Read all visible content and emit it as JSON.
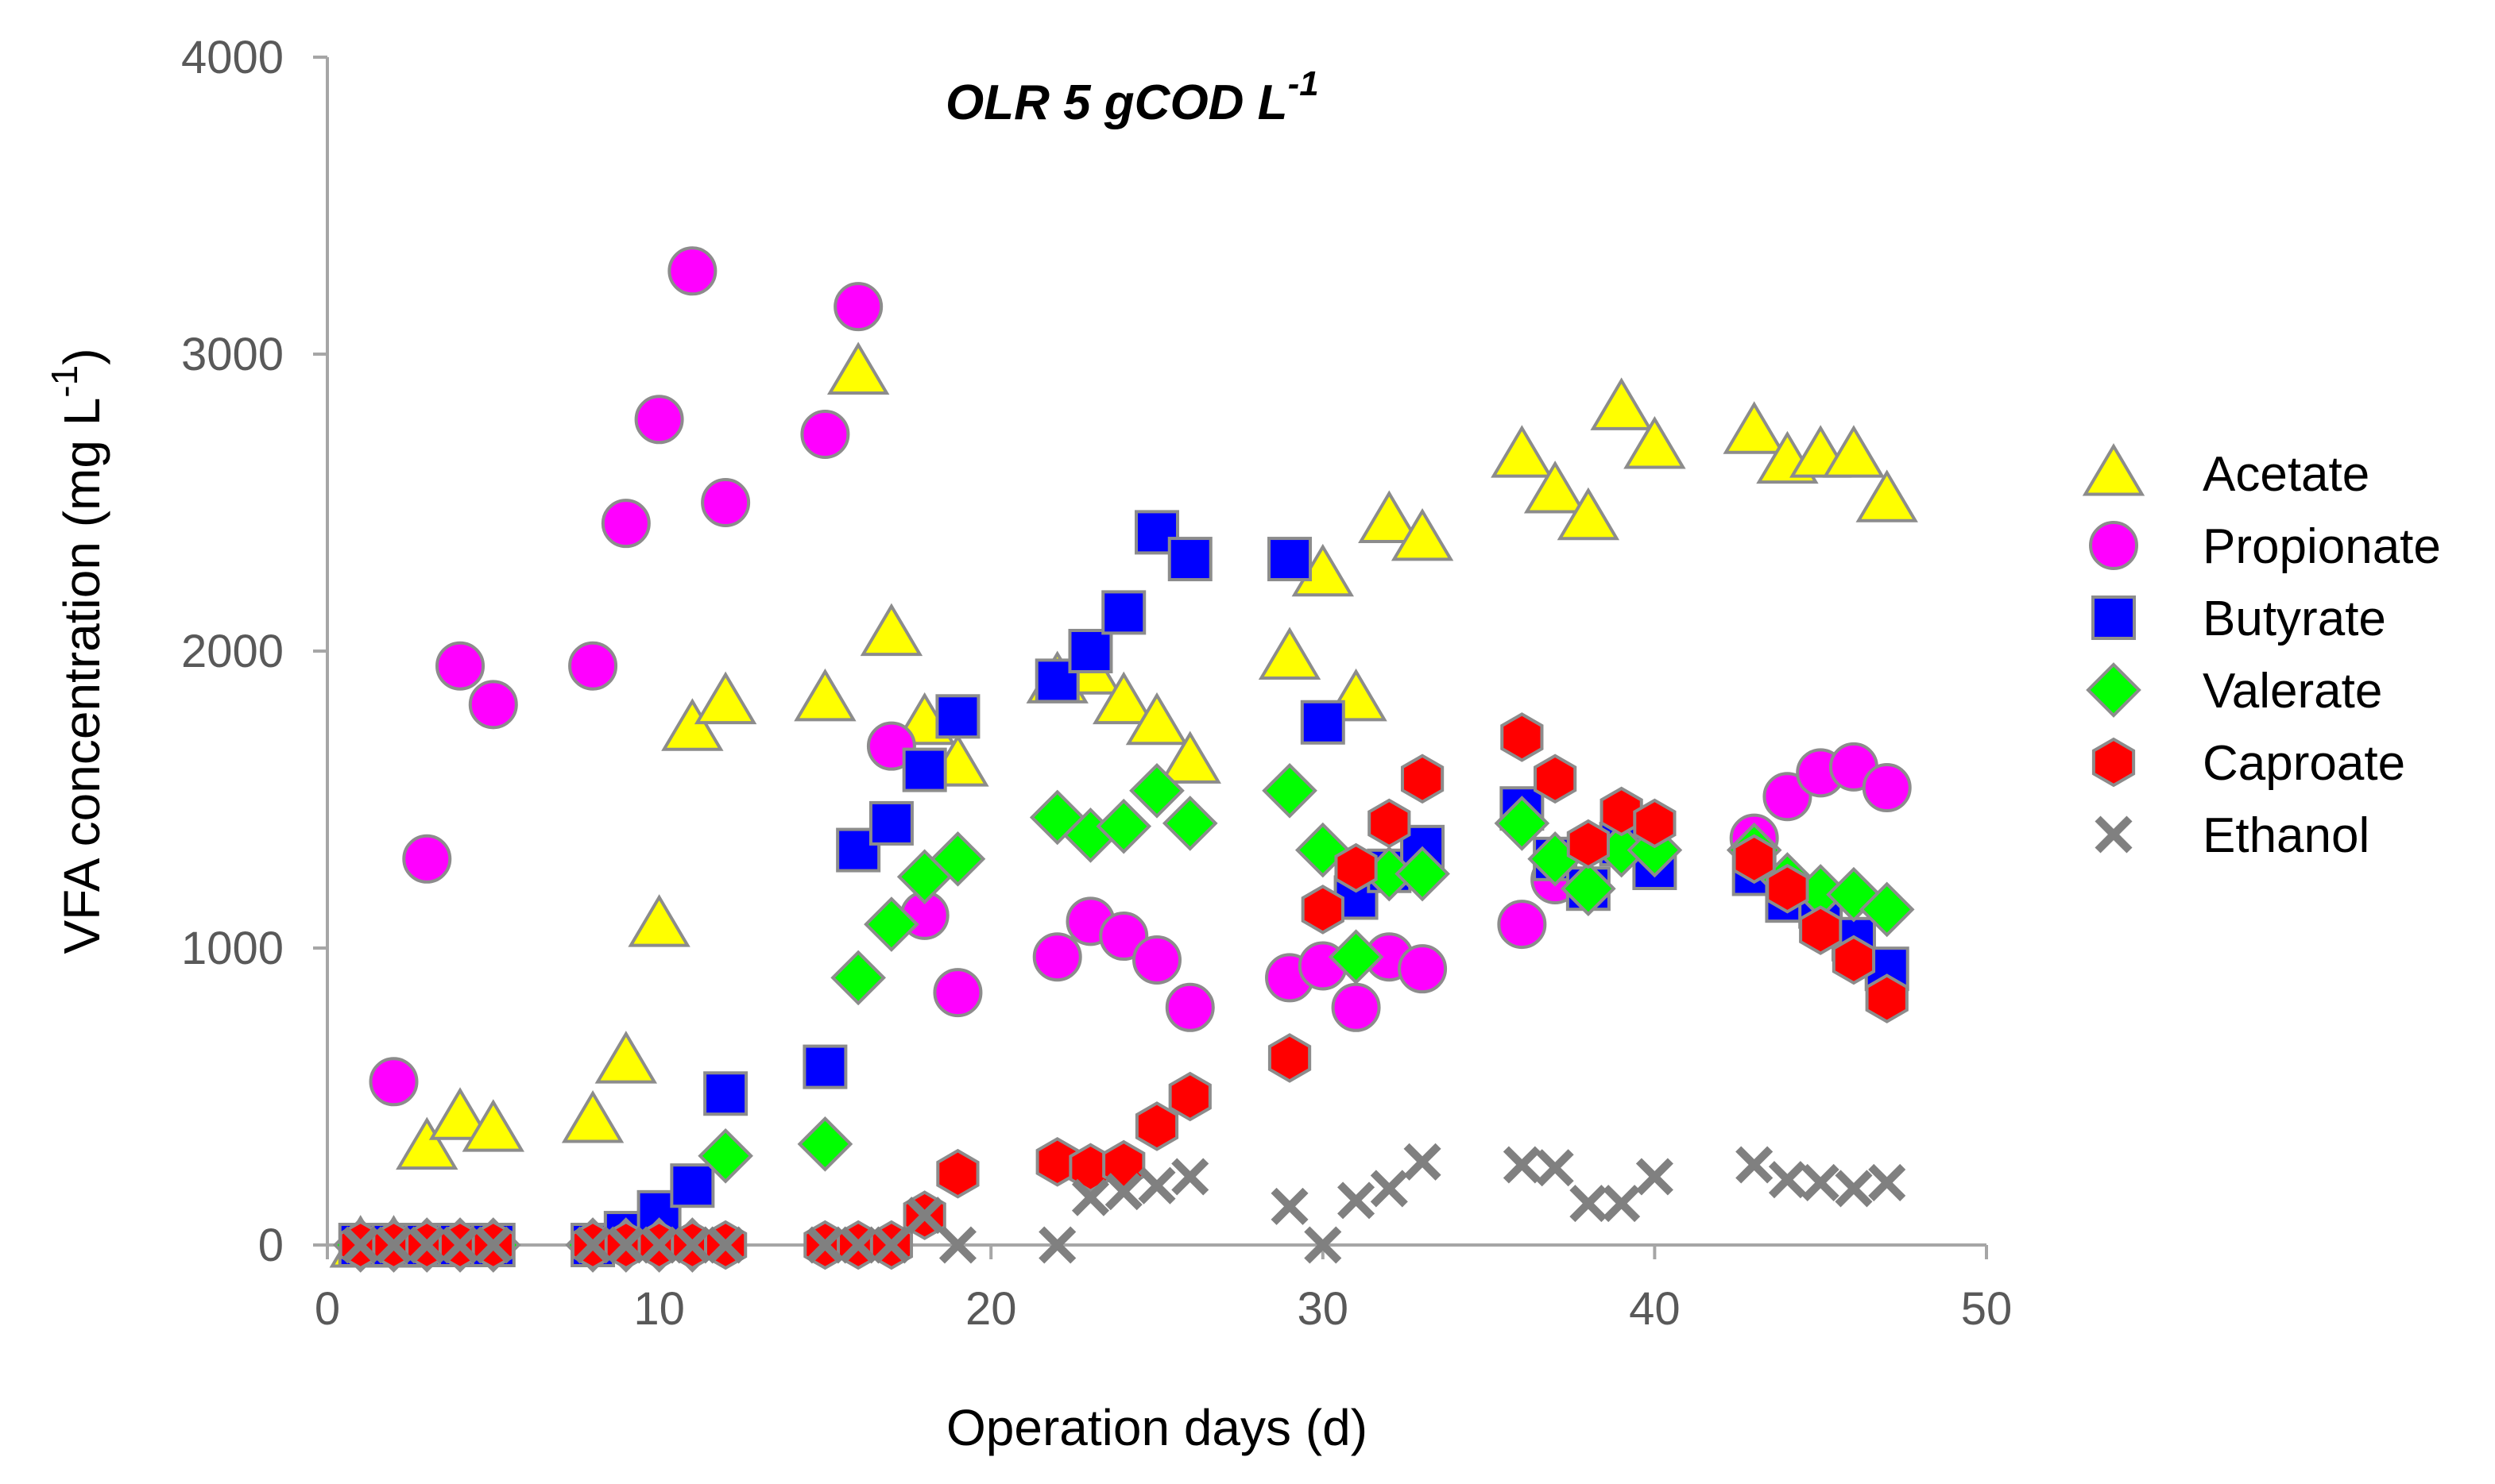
{
  "chart_data": {
    "type": "scatter",
    "title": "OLR 5 gCOD L",
    "title_superscript": "-1",
    "xlabel": "Operation days (d)",
    "ylabel": "VFA concentration (mg L",
    "ylabel_superscript": "-1",
    "ylabel_suffix": ")",
    "xlim": [
      0,
      50
    ],
    "ylim": [
      0,
      4000
    ],
    "xticks": [
      0,
      10,
      20,
      30,
      40,
      50
    ],
    "yticks": [
      0,
      1000,
      2000,
      3000,
      4000
    ],
    "legend_position": "right",
    "series": [
      {
        "name": "Acetate",
        "marker": "triangle",
        "color": "#ffff00",
        "points": [
          [
            1,
            0
          ],
          [
            2,
            0
          ],
          [
            3,
            330
          ],
          [
            4,
            430
          ],
          [
            5,
            390
          ],
          [
            8,
            420
          ],
          [
            9,
            620
          ],
          [
            10,
            1080
          ],
          [
            11,
            1740
          ],
          [
            12,
            1830
          ],
          [
            15,
            1840
          ],
          [
            16,
            2940
          ],
          [
            17,
            2060
          ],
          [
            18,
            1760
          ],
          [
            19,
            1620
          ],
          [
            22,
            1900
          ],
          [
            23,
            1930
          ],
          [
            24,
            1830
          ],
          [
            25,
            1760
          ],
          [
            26,
            1630
          ],
          [
            29,
            1980
          ],
          [
            30,
            2260
          ],
          [
            31,
            1840
          ],
          [
            32,
            2440
          ],
          [
            33,
            2380
          ],
          [
            36,
            2660
          ],
          [
            37,
            2540
          ],
          [
            38,
            2450
          ],
          [
            39,
            2820
          ],
          [
            40,
            2690
          ],
          [
            43,
            2740
          ],
          [
            44,
            2640
          ],
          [
            45,
            2660
          ],
          [
            46,
            2660
          ],
          [
            47,
            2510
          ]
        ]
      },
      {
        "name": "Propionate",
        "marker": "circle",
        "color": "#ff00ff",
        "points": [
          [
            2,
            550
          ],
          [
            3,
            1300
          ],
          [
            4,
            1950
          ],
          [
            5,
            1820
          ],
          [
            8,
            1950
          ],
          [
            9,
            2430
          ],
          [
            10,
            2780
          ],
          [
            11,
            3280
          ],
          [
            12,
            2500
          ],
          [
            15,
            2730
          ],
          [
            16,
            3160
          ],
          [
            17,
            1680
          ],
          [
            18,
            1110
          ],
          [
            19,
            850
          ],
          [
            22,
            970
          ],
          [
            23,
            1090
          ],
          [
            24,
            1040
          ],
          [
            25,
            960
          ],
          [
            26,
            800
          ],
          [
            29,
            900
          ],
          [
            30,
            940
          ],
          [
            31,
            800
          ],
          [
            32,
            970
          ],
          [
            33,
            930
          ],
          [
            36,
            1080
          ],
          [
            37,
            1230
          ],
          [
            43,
            1370
          ],
          [
            44,
            1510
          ],
          [
            45,
            1590
          ],
          [
            46,
            1610
          ],
          [
            47,
            1540
          ]
        ]
      },
      {
        "name": "Butyrate",
        "marker": "square",
        "color": "#0000ff",
        "points": [
          [
            1,
            0
          ],
          [
            2,
            0
          ],
          [
            3,
            0
          ],
          [
            4,
            0
          ],
          [
            5,
            0
          ],
          [
            8,
            0
          ],
          [
            9,
            40
          ],
          [
            10,
            110
          ],
          [
            11,
            200
          ],
          [
            12,
            510
          ],
          [
            15,
            600
          ],
          [
            16,
            1330
          ],
          [
            17,
            1420
          ],
          [
            18,
            1600
          ],
          [
            19,
            1780
          ],
          [
            22,
            1900
          ],
          [
            23,
            2000
          ],
          [
            24,
            2130
          ],
          [
            25,
            2400
          ],
          [
            26,
            2310
          ],
          [
            29,
            2310
          ],
          [
            30,
            1760
          ],
          [
            31,
            1170
          ],
          [
            32,
            1260
          ],
          [
            33,
            1340
          ],
          [
            36,
            1470
          ],
          [
            37,
            1300
          ],
          [
            38,
            1200
          ],
          [
            39,
            1350
          ],
          [
            40,
            1270
          ],
          [
            43,
            1250
          ],
          [
            44,
            1160
          ],
          [
            45,
            1140
          ],
          [
            46,
            1030
          ],
          [
            47,
            930
          ]
        ]
      },
      {
        "name": "Valerate",
        "marker": "diamond",
        "color": "#00ff00",
        "points": [
          [
            1,
            0
          ],
          [
            2,
            0
          ],
          [
            3,
            0
          ],
          [
            4,
            0
          ],
          [
            5,
            0
          ],
          [
            8,
            0
          ],
          [
            9,
            0
          ],
          [
            10,
            0
          ],
          [
            11,
            0
          ],
          [
            12,
            300
          ],
          [
            15,
            340
          ],
          [
            16,
            900
          ],
          [
            17,
            1080
          ],
          [
            18,
            1240
          ],
          [
            19,
            1300
          ],
          [
            22,
            1440
          ],
          [
            23,
            1380
          ],
          [
            24,
            1410
          ],
          [
            25,
            1530
          ],
          [
            26,
            1420
          ],
          [
            29,
            1530
          ],
          [
            30,
            1330
          ],
          [
            31,
            970
          ],
          [
            32,
            1250
          ],
          [
            33,
            1250
          ],
          [
            36,
            1420
          ],
          [
            37,
            1300
          ],
          [
            38,
            1200
          ],
          [
            39,
            1330
          ],
          [
            40,
            1330
          ],
          [
            43,
            1330
          ],
          [
            44,
            1230
          ],
          [
            45,
            1190
          ],
          [
            46,
            1180
          ],
          [
            47,
            1130
          ]
        ]
      },
      {
        "name": "Caproate",
        "marker": "hexagon",
        "color": "#ff0000",
        "points": [
          [
            1,
            0
          ],
          [
            2,
            0
          ],
          [
            3,
            0
          ],
          [
            4,
            0
          ],
          [
            5,
            0
          ],
          [
            8,
            0
          ],
          [
            9,
            0
          ],
          [
            10,
            0
          ],
          [
            11,
            0
          ],
          [
            12,
            0
          ],
          [
            15,
            0
          ],
          [
            16,
            0
          ],
          [
            17,
            0
          ],
          [
            18,
            100
          ],
          [
            19,
            240
          ],
          [
            22,
            280
          ],
          [
            23,
            260
          ],
          [
            24,
            270
          ],
          [
            25,
            400
          ],
          [
            26,
            500
          ],
          [
            29,
            630
          ],
          [
            30,
            1130
          ],
          [
            31,
            1270
          ],
          [
            32,
            1420
          ],
          [
            33,
            1570
          ],
          [
            36,
            1710
          ],
          [
            37,
            1570
          ],
          [
            38,
            1350
          ],
          [
            39,
            1460
          ],
          [
            40,
            1420
          ],
          [
            43,
            1300
          ],
          [
            44,
            1200
          ],
          [
            45,
            1060
          ],
          [
            46,
            960
          ],
          [
            47,
            830
          ]
        ]
      },
      {
        "name": "Ethanol",
        "marker": "cross",
        "color": "#808080",
        "points": [
          [
            1,
            0
          ],
          [
            2,
            0
          ],
          [
            3,
            0
          ],
          [
            4,
            0
          ],
          [
            5,
            0
          ],
          [
            8,
            0
          ],
          [
            9,
            0
          ],
          [
            10,
            0
          ],
          [
            11,
            0
          ],
          [
            12,
            0
          ],
          [
            15,
            0
          ],
          [
            16,
            0
          ],
          [
            17,
            0
          ],
          [
            18,
            100
          ],
          [
            19,
            0
          ],
          [
            22,
            0
          ],
          [
            23,
            160
          ],
          [
            24,
            180
          ],
          [
            25,
            200
          ],
          [
            26,
            230
          ],
          [
            29,
            130
          ],
          [
            30,
            0
          ],
          [
            31,
            150
          ],
          [
            32,
            190
          ],
          [
            33,
            280
          ],
          [
            36,
            270
          ],
          [
            37,
            260
          ],
          [
            38,
            140
          ],
          [
            39,
            140
          ],
          [
            40,
            230
          ],
          [
            43,
            270
          ],
          [
            44,
            220
          ],
          [
            45,
            210
          ],
          [
            46,
            190
          ],
          [
            47,
            210
          ]
        ]
      }
    ]
  }
}
